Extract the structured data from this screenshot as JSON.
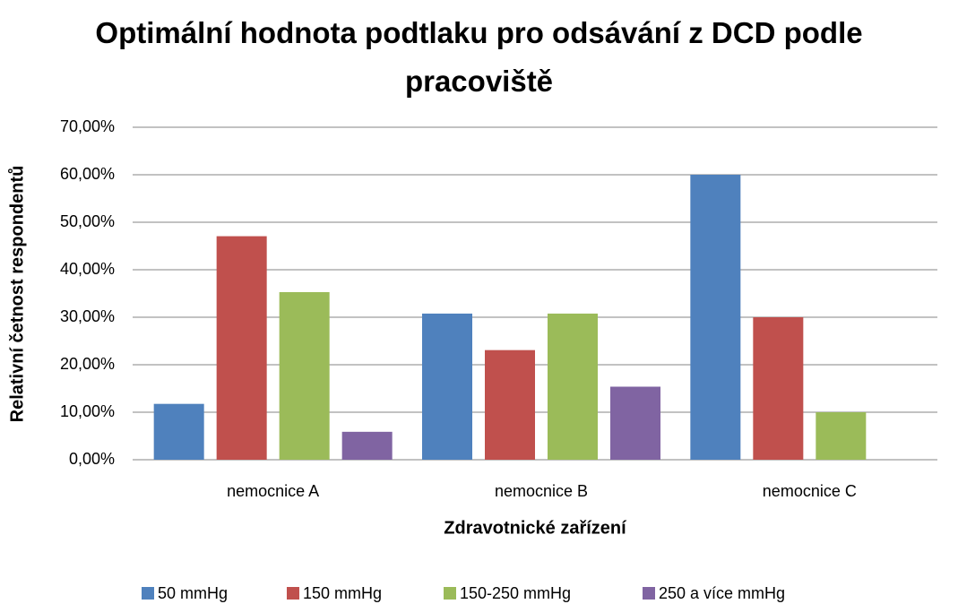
{
  "chart_data": {
    "type": "bar",
    "title": "Optimální hodnota podtlaku pro odsávání z DCD podle pracoviště",
    "x_label": "Zdravotnické zařízení",
    "y_label": "Relativní četnost respondentů",
    "categories": [
      "nemocnice A",
      "nemocnice B",
      "nemocnice C"
    ],
    "series": [
      {
        "name": "50 mmHg",
        "color": "#4f81bd",
        "values": [
          11.76,
          30.77,
          60
        ]
      },
      {
        "name": "150 mmHg",
        "color": "#c0504d",
        "values": [
          47.06,
          23.08,
          30
        ]
      },
      {
        "name": "150-250 mmHg",
        "color": "#9bbb59",
        "values": [
          35.29,
          30.77,
          10
        ]
      },
      {
        "name": "250 a více mmHg",
        "color": "#8064a2",
        "values": [
          5.88,
          15.38,
          0
        ]
      }
    ],
    "ylim": [
      0,
      70
    ],
    "yticks": [
      {
        "value": 0,
        "label": "0,00%"
      },
      {
        "value": 10,
        "label": "10,00%"
      },
      {
        "value": 20,
        "label": "20,00%"
      },
      {
        "value": 30,
        "label": "30,00%"
      },
      {
        "value": 40,
        "label": "40,00%"
      },
      {
        "value": 50,
        "label": "50,00%"
      },
      {
        "value": 60,
        "label": "60,00%"
      },
      {
        "value": 70,
        "label": "70,00%"
      }
    ],
    "grid": true,
    "legend": "bottom"
  }
}
